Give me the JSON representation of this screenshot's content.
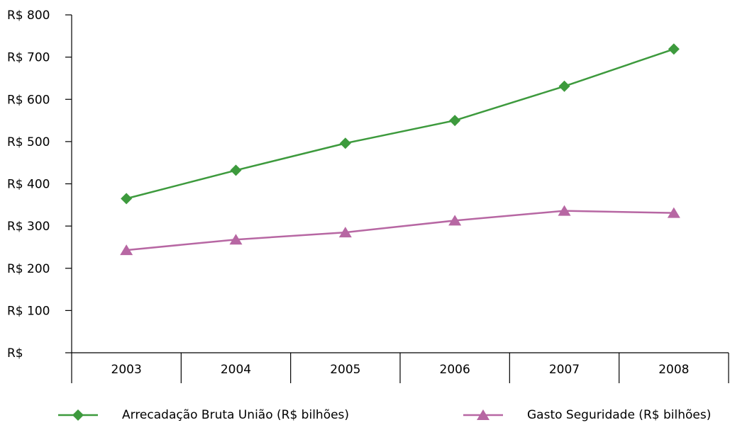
{
  "chart_data": {
    "type": "line",
    "categories": [
      "2003",
      "2004",
      "2005",
      "2006",
      "2007",
      "2008"
    ],
    "y_ticks": [
      "R$",
      "R$ 100",
      "R$ 200",
      "R$ 300",
      "R$ 400",
      "R$ 500",
      "R$ 600",
      "R$ 700",
      "R$ 800"
    ],
    "ylim": [
      0,
      800
    ],
    "grid": false,
    "legend_position": "bottom",
    "series": [
      {
        "name": "Arrecadação Bruta União (R$ bilhões)",
        "color": "#3d9a3d",
        "marker": "diamond",
        "values": [
          365,
          432,
          496,
          550,
          631,
          719
        ]
      },
      {
        "name": "Gasto Seguridade (R$ bilhões)",
        "color": "#b767a3",
        "marker": "triangle",
        "values": [
          243,
          268,
          285,
          313,
          336,
          331
        ]
      }
    ]
  }
}
